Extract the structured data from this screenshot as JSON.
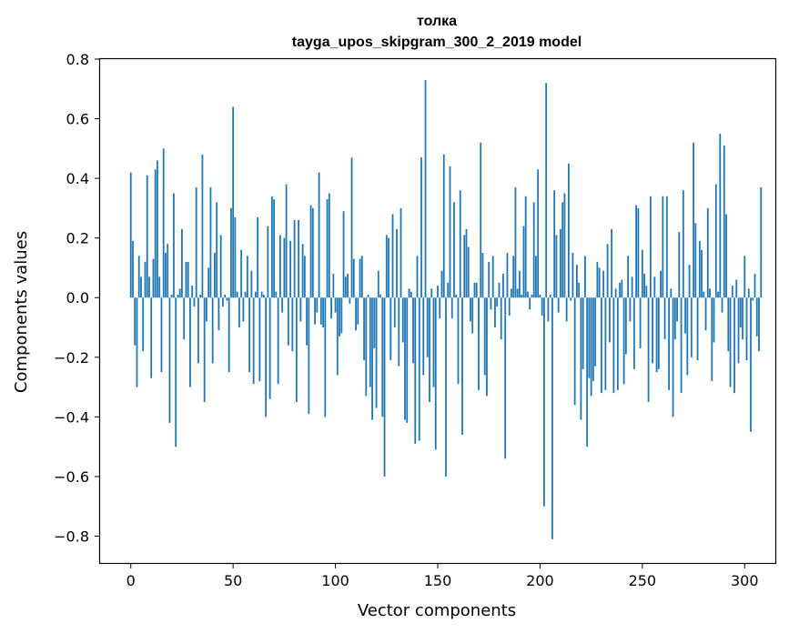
{
  "chart_data": {
    "type": "bar",
    "title": "толка",
    "subtitle": "tayga_upos_skipgram_300_2_2019 model",
    "xlabel": "Vector components",
    "ylabel": "Components values",
    "xlim": [
      -15,
      315
    ],
    "ylim": [
      -0.89,
      0.8
    ],
    "xticks": [
      0,
      50,
      100,
      150,
      200,
      250,
      300
    ],
    "xtick_labels": [
      "0",
      "50",
      "100",
      "150",
      "200",
      "250",
      "300"
    ],
    "yticks": [
      0.8,
      0.6,
      0.4,
      0.2,
      0.0,
      -0.2,
      -0.4,
      -0.6,
      -0.8
    ],
    "ytick_labels": [
      "0.8",
      "0.6",
      "0.4",
      "0.2",
      "0.0",
      "−0.2",
      "−0.4",
      "−0.6",
      "−0.8"
    ],
    "bar_color": "#1f77b4",
    "bar_width": 0.8,
    "series": [
      {
        "name": "толка",
        "values": [
          0.42,
          0.19,
          -0.16,
          -0.3,
          0.14,
          0.07,
          -0.18,
          0.12,
          0.41,
          0.07,
          -0.27,
          0.13,
          0.43,
          0.46,
          0.07,
          -0.25,
          0.5,
          0.15,
          0.18,
          -0.42,
          0.01,
          0.35,
          -0.5,
          0.01,
          0.03,
          0.23,
          -0.14,
          0.12,
          0.12,
          -0.3,
          0.04,
          -0.03,
          0.37,
          -0.22,
          0.01,
          0.48,
          -0.35,
          -0.08,
          0.1,
          0.37,
          -0.22,
          0.15,
          0.32,
          -0.11,
          0.21,
          -0.03,
          0.01,
          -0.01,
          -0.25,
          0.3,
          0.64,
          0.27,
          0.02,
          -0.1,
          0.16,
          -0.08,
          0.02,
          0.14,
          -0.25,
          0.09,
          -0.29,
          0.02,
          0.27,
          -0.28,
          0.02,
          0.01,
          -0.4,
          0.24,
          -0.34,
          0.34,
          0.33,
          0.02,
          -0.29,
          0.21,
          -0.05,
          0.2,
          0.38,
          -0.16,
          0.19,
          -0.18,
          0.26,
          -0.35,
          0.26,
          -0.08,
          0.18,
          0.14,
          -0.16,
          -0.39,
          0.31,
          0.3,
          -0.09,
          -0.05,
          0.42,
          -0.09,
          -0.1,
          -0.4,
          0.33,
          0.35,
          -0.07,
          0.08,
          -0.05,
          -0.26,
          -0.13,
          -0.12,
          0.29,
          0.07,
          0.08,
          -0.02,
          0.47,
          0.13,
          -0.11,
          -0.09,
          0.13,
          0.14,
          -0.21,
          -0.33,
          0.01,
          -0.3,
          -0.41,
          -0.17,
          -0.37,
          0.09,
          0.01,
          -0.4,
          -0.6,
          0.21,
          0.2,
          -0.21,
          0.28,
          -0.1,
          0.23,
          -0.23,
          0.3,
          -0.15,
          -0.41,
          -0.42,
          0.03,
          0.02,
          -0.22,
          -0.49,
          0.14,
          -0.48,
          0.47,
          -0.26,
          0.73,
          -0.2,
          -0.35,
          0.03,
          -0.3,
          -0.51,
          0.04,
          -0.07,
          0.09,
          0.48,
          -0.6,
          0.05,
          0.44,
          -0.07,
          0.32,
          0.01,
          -0.29,
          0.36,
          -0.46,
          0.21,
          0.23,
          0.17,
          -0.08,
          -0.12,
          0.05,
          0.05,
          -0.31,
          0.52,
          0.15,
          -0.26,
          -0.33,
          0.12,
          -0.04,
          0.14,
          -0.1,
          -0.03,
          0.05,
          -0.14,
          0.08,
          -0.54,
          0.15,
          -0.06,
          0.03,
          0.14,
          0.37,
          0.03,
          0.09,
          0.01,
          0.24,
          0.34,
          0.02,
          -0.04,
          0.01,
          0.32,
          0.14,
          0.43,
          0.01,
          -0.06,
          -0.7,
          0.72,
          -0.08,
          0.01,
          -0.81,
          0.36,
          0.21,
          -0.05,
          0.23,
          0.32,
          0.35,
          -0.08,
          0.45,
          -0.01,
          0.15,
          -0.36,
          0.11,
          0.05,
          -0.41,
          -0.24,
          0.14,
          -0.5,
          -0.27,
          -0.33,
          -0.28,
          -0.23,
          0.12,
          0.1,
          -0.32,
          0.09,
          -0.31,
          0.18,
          -0.15,
          0.23,
          -0.32,
          0.03,
          -0.31,
          0.05,
          0.06,
          -0.29,
          -0.19,
          0.14,
          -0.08,
          0.07,
          -0.24,
          0.31,
          0.3,
          -0.17,
          0.16,
          0.08,
          0.04,
          -0.35,
          0.34,
          -0.22,
          0.07,
          -0.25,
          -0.24,
          0.09,
          0.34,
          -0.14,
          0.34,
          -0.31,
          0.03,
          -0.4,
          -0.14,
          -0.08,
          0.22,
          -0.32,
          0.36,
          -0.12,
          -0.26,
          0.11,
          -0.2,
          0.52,
          0.25,
          -0.21,
          0.19,
          0.16,
          0.02,
          -0.11,
          0.3,
          0.03,
          -0.28,
          -0.15,
          0.38,
          0.02,
          0.55,
          -0.05,
          0.51,
          0.28,
          -0.18,
          -0.3,
          0.04,
          -0.32,
          0.06,
          -0.22,
          -0.1,
          -0.14,
          0.14,
          -0.21,
          0.03,
          -0.45,
          -0.01,
          0.08,
          -0.13,
          -0.18,
          0.37
        ]
      }
    ]
  }
}
